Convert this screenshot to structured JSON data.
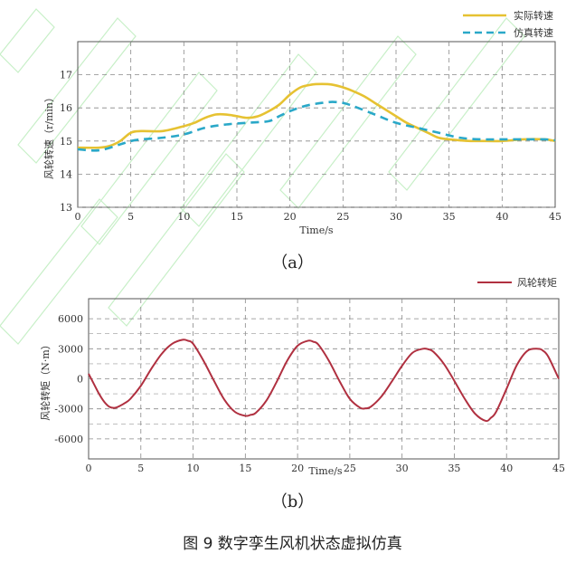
{
  "top_cutoff_text": "",
  "figure_caption": "图 9  数字孪生风机状态虚拟仿真",
  "chart_data": [
    {
      "type": "line",
      "caption": "（a）",
      "xlabel": "Time/s",
      "ylabel": "风轮转速（r/min）",
      "xlim": [
        0,
        45
      ],
      "ylim": [
        13,
        18
      ],
      "xticks": [
        0,
        5,
        10,
        15,
        20,
        25,
        30,
        35,
        40,
        45
      ],
      "yticks": [
        13,
        14,
        15,
        16,
        17
      ],
      "grid": true,
      "legend_position": "top-right",
      "series": [
        {
          "name": "实际转速",
          "color": "#e6c232",
          "style": "solid",
          "x": [
            0,
            2,
            3,
            4,
            5,
            6,
            8,
            10,
            11,
            12,
            13,
            14,
            15,
            16,
            17,
            18,
            19,
            20,
            21,
            22,
            23,
            24,
            25,
            26,
            27,
            28,
            29,
            30,
            31,
            32,
            33,
            34,
            35,
            36,
            37,
            38,
            40,
            42,
            44,
            45
          ],
          "values": [
            14.8,
            14.8,
            14.85,
            15.0,
            15.25,
            15.3,
            15.3,
            15.45,
            15.55,
            15.7,
            15.8,
            15.8,
            15.75,
            15.7,
            15.75,
            15.9,
            16.1,
            16.4,
            16.62,
            16.7,
            16.72,
            16.7,
            16.62,
            16.5,
            16.35,
            16.15,
            15.95,
            15.75,
            15.55,
            15.4,
            15.25,
            15.1,
            15.05,
            15.02,
            15.0,
            15.0,
            15.0,
            15.05,
            15.05,
            15.0
          ]
        },
        {
          "name": "仿真转速",
          "color": "#2aa8c8",
          "style": "dashed",
          "x": [
            0,
            2,
            4,
            5,
            6,
            8,
            10,
            12,
            14,
            16,
            18,
            19,
            20,
            21,
            22,
            23,
            24,
            25,
            26,
            28,
            30,
            32,
            34,
            36,
            38,
            40,
            42,
            44,
            45
          ],
          "values": [
            14.75,
            14.72,
            14.9,
            15.0,
            15.05,
            15.1,
            15.2,
            15.4,
            15.5,
            15.55,
            15.6,
            15.75,
            15.9,
            16.02,
            16.1,
            16.15,
            16.18,
            16.15,
            16.05,
            15.8,
            15.55,
            15.4,
            15.25,
            15.1,
            15.05,
            15.05,
            15.05,
            15.05,
            15.02
          ]
        }
      ]
    },
    {
      "type": "line",
      "caption": "（b）",
      "xlabel": "Time/s",
      "ylabel": "风轮转矩（N·m）",
      "xlim": [
        0,
        45
      ],
      "ylim": [
        -8000,
        8000
      ],
      "xticks": [
        0,
        5,
        10,
        15,
        20,
        25,
        30,
        35,
        40,
        45
      ],
      "yticks": [
        6000,
        3000,
        0,
        -3000,
        -6000
      ],
      "grid": true,
      "legend_position": "top-right",
      "series": [
        {
          "name": "风轮转矩",
          "color": "#b03040",
          "style": "solid",
          "x": [
            0,
            0.5,
            1,
            1.5,
            2,
            2.5,
            3,
            3.5,
            4,
            5,
            6,
            7,
            8,
            9,
            9.5,
            10,
            11,
            12,
            13,
            14,
            15,
            15.5,
            16,
            17,
            18,
            19,
            20,
            21,
            21.5,
            22,
            23,
            24,
            25,
            26,
            26.5,
            27,
            28,
            29,
            30,
            31,
            32,
            32.5,
            33,
            34,
            35,
            36,
            37,
            38,
            38.5,
            39,
            40,
            41,
            42,
            43,
            43.5,
            44,
            45
          ],
          "values": [
            500,
            -500,
            -1500,
            -2300,
            -2800,
            -2900,
            -2700,
            -2400,
            -2000,
            -700,
            1000,
            2500,
            3500,
            3900,
            3800,
            3500,
            1800,
            -200,
            -2100,
            -3300,
            -3700,
            -3600,
            -3400,
            -2200,
            -300,
            1800,
            3300,
            3800,
            3700,
            3400,
            1800,
            -200,
            -2000,
            -2900,
            -2950,
            -2800,
            -1800,
            -300,
            1300,
            2600,
            3000,
            2950,
            2700,
            1500,
            -200,
            -2000,
            -3500,
            -4200,
            -3900,
            -3300,
            -1000,
            1400,
            2800,
            3000,
            2800,
            2200,
            0
          ]
        }
      ]
    }
  ]
}
